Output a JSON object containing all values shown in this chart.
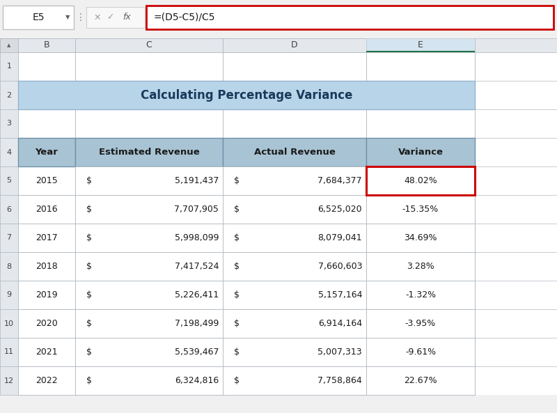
{
  "title": "Calculating Percentage Variance",
  "formula_bar_text": "=(D5-C5)/C5",
  "cell_ref": "E5",
  "headers": [
    "Year",
    "Estimated Revenue",
    "Actual Revenue",
    "Variance"
  ],
  "rows": [
    [
      "2015",
      "$ ",
      "5,191,437",
      "$ ",
      "7,684,377",
      "48.02%"
    ],
    [
      "2016",
      "$ ",
      "7,707,905",
      "$ ",
      "6,525,020",
      "-15.35%"
    ],
    [
      "2017",
      "$ ",
      "5,998,099",
      "$ ",
      "8,079,041",
      "34.69%"
    ],
    [
      "2018",
      "$ ",
      "7,417,524",
      "$ ",
      "7,660,603",
      "3.28%"
    ],
    [
      "2019",
      "$ ",
      "5,226,411",
      "$ ",
      "5,157,164",
      "-1.32%"
    ],
    [
      "2020",
      "$ ",
      "7,198,499",
      "$ ",
      "6,914,164",
      "-3.95%"
    ],
    [
      "2021",
      "$ ",
      "5,539,467",
      "$ ",
      "5,007,313",
      "-9.61%"
    ],
    [
      "2022",
      "$ ",
      "6,324,816",
      "$ ",
      "7,758,864",
      "22.67%"
    ]
  ],
  "header_bg": "#a8c4d4",
  "title_bg": "#b8d4e8",
  "grid_color": "#b0b8c0",
  "header_font_size": 9.5,
  "cell_font_size": 9,
  "title_font_size": 12,
  "highlight_border": "#cc0000",
  "active_col_bg": "#d4e4f0",
  "active_col_border": "#217346",
  "col_hdr_bg": "#e4e8ec",
  "row_hdr_bg": "#e4e8ec",
  "spreadsheet_bg": "#f0f0f0",
  "toolbar_bg": "#f0f0f0",
  "formula_input_bg": "#ffffff",
  "cell_bg": "#ffffff"
}
